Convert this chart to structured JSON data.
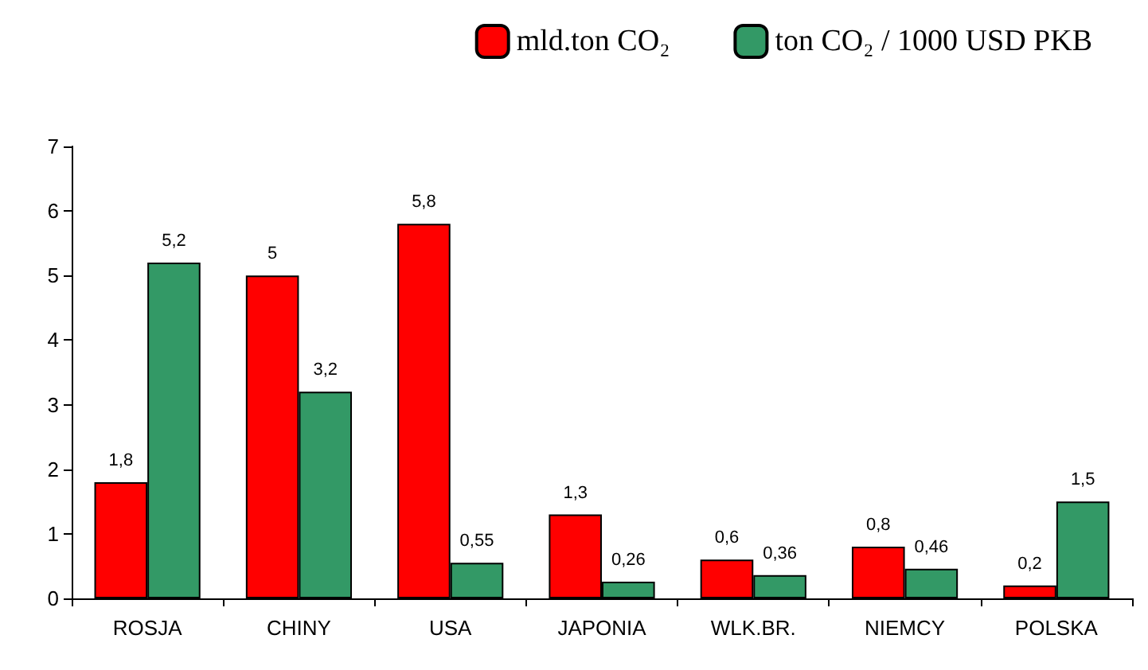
{
  "chart_data": {
    "type": "bar",
    "categories": [
      "ROSJA",
      "CHINY",
      "USA",
      "JAPONIA",
      "WLK.BR.",
      "NIEMCY",
      "POLSKA"
    ],
    "series": [
      {
        "name": "mld.ton CO₂",
        "color": "#ff0000",
        "values": [
          1.8,
          5,
          5.8,
          1.3,
          0.6,
          0.8,
          0.2
        ],
        "value_labels": [
          "1,8",
          "5",
          "5,8",
          "1,3",
          "0,6",
          "0,8",
          "0,2"
        ]
      },
      {
        "name": "ton CO₂ / 1000 USD PKB",
        "color": "#339966",
        "values": [
          5.2,
          3.2,
          0.55,
          0.26,
          0.36,
          0.46,
          1.5
        ],
        "value_labels": [
          "5,2",
          "3,2",
          "0,55",
          "0,26",
          "0,36",
          "0,46",
          "1,5"
        ]
      }
    ],
    "ylim": [
      0,
      7
    ],
    "yticks": [
      0,
      1,
      2,
      3,
      4,
      5,
      6,
      7
    ],
    "grid": false,
    "legend": "top right"
  }
}
